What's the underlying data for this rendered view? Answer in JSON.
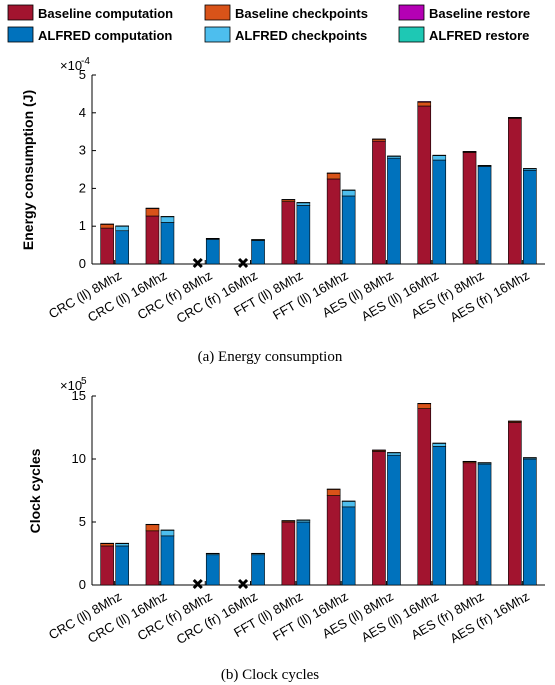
{
  "legend": [
    {
      "label": "Baseline computation",
      "color": "#A2142F"
    },
    {
      "label": "Baseline checkpoints",
      "color": "#D95319"
    },
    {
      "label": "Baseline restore",
      "color": "#B400B4"
    },
    {
      "label": "ALFRED computation",
      "color": "#0072BD"
    },
    {
      "label": "ALFRED checkpoints",
      "color": "#4DBEEE"
    },
    {
      "label": "ALFRED restore",
      "color": "#1EC8B4"
    }
  ],
  "chart_data": [
    {
      "type": "bar",
      "caption": "(a)  Energy consumption",
      "ylabel": "Energy consumption (J)",
      "exponent_label": "×10",
      "exponent": "-4",
      "ylim": [
        0,
        5
      ],
      "yticks": [
        "0",
        "1",
        "2",
        "3",
        "4",
        "5"
      ],
      "categories": [
        "CRC (ll) 8Mhz",
        "CRC (ll) 16Mhz",
        "CRC (fr) 8Mhz",
        "CRC (fr) 16Mhz",
        "FFT (ll) 8Mhz",
        "FFT (ll) 16Mhz",
        "AES (ll) 8Mhz",
        "AES (ll) 16Mhz",
        "AES (fr) 8Mhz",
        "AES (fr) 16Mhz"
      ],
      "series": [
        {
          "name": "Baseline computation",
          "values": [
            0.95,
            1.27,
            0,
            0,
            1.65,
            2.25,
            3.25,
            4.18,
            2.95,
            3.85
          ]
        },
        {
          "name": "Baseline checkpoints",
          "values": [
            0.1,
            0.2,
            0,
            0,
            0.05,
            0.15,
            0.05,
            0.1,
            0.02,
            0.02
          ]
        },
        {
          "name": "Baseline restore",
          "values": [
            0.01,
            0.01,
            0,
            0,
            0.01,
            0.01,
            0.01,
            0.02,
            0.01,
            0.01
          ]
        },
        {
          "name": "ALFRED computation",
          "values": [
            0.88,
            1.1,
            0.65,
            0.62,
            1.55,
            1.8,
            2.8,
            2.75,
            2.58,
            2.48
          ]
        },
        {
          "name": "ALFRED checkpoints",
          "values": [
            0.12,
            0.15,
            0.02,
            0.02,
            0.07,
            0.15,
            0.05,
            0.12,
            0.02,
            0.04
          ]
        },
        {
          "name": "ALFRED restore",
          "values": [
            0.01,
            0.01,
            0.01,
            0.01,
            0.01,
            0.01,
            0.01,
            0.01,
            0.01,
            0.01
          ]
        }
      ],
      "failed_baseline": [
        false,
        false,
        true,
        true,
        false,
        false,
        false,
        false,
        false,
        false
      ]
    },
    {
      "type": "bar",
      "caption": "(b)  Clock cycles",
      "ylabel": "Clock cycles",
      "exponent_label": "×10",
      "exponent": "5",
      "ylim": [
        0,
        15
      ],
      "yticks": [
        "0",
        "5",
        "10",
        "15"
      ],
      "categories": [
        "CRC (ll) 8Mhz",
        "CRC (ll) 16Mhz",
        "CRC (fr) 8Mhz",
        "CRC (fr) 16Mhz",
        "FFT (ll) 8Mhz",
        "FFT (ll) 16Mhz",
        "AES (ll) 8Mhz",
        "AES (ll) 16Mhz",
        "AES (fr) 8Mhz",
        "AES (fr) 16Mhz"
      ],
      "series": [
        {
          "name": "Baseline computation",
          "values": [
            3.1,
            4.3,
            0,
            0,
            5.0,
            7.1,
            10.6,
            14.0,
            9.7,
            12.9
          ]
        },
        {
          "name": "Baseline checkpoints",
          "values": [
            0.2,
            0.5,
            0,
            0,
            0.1,
            0.5,
            0.1,
            0.4,
            0.1,
            0.1
          ]
        },
        {
          "name": "Baseline restore",
          "values": [
            0.02,
            0.02,
            0,
            0,
            0.02,
            0.02,
            0.02,
            0.02,
            0.02,
            0.02
          ]
        },
        {
          "name": "ALFRED computation",
          "values": [
            3.1,
            3.9,
            2.4,
            2.4,
            5.0,
            6.2,
            10.3,
            11.0,
            9.6,
            10.0
          ]
        },
        {
          "name": "ALFRED checkpoints",
          "values": [
            0.2,
            0.45,
            0.1,
            0.1,
            0.15,
            0.45,
            0.2,
            0.25,
            0.1,
            0.1
          ]
        },
        {
          "name": "ALFRED restore",
          "values": [
            0.02,
            0.02,
            0.02,
            0.02,
            0.02,
            0.02,
            0.02,
            0.02,
            0.02,
            0.02
          ]
        }
      ],
      "failed_baseline": [
        false,
        false,
        true,
        true,
        false,
        false,
        false,
        false,
        false,
        false
      ]
    }
  ]
}
